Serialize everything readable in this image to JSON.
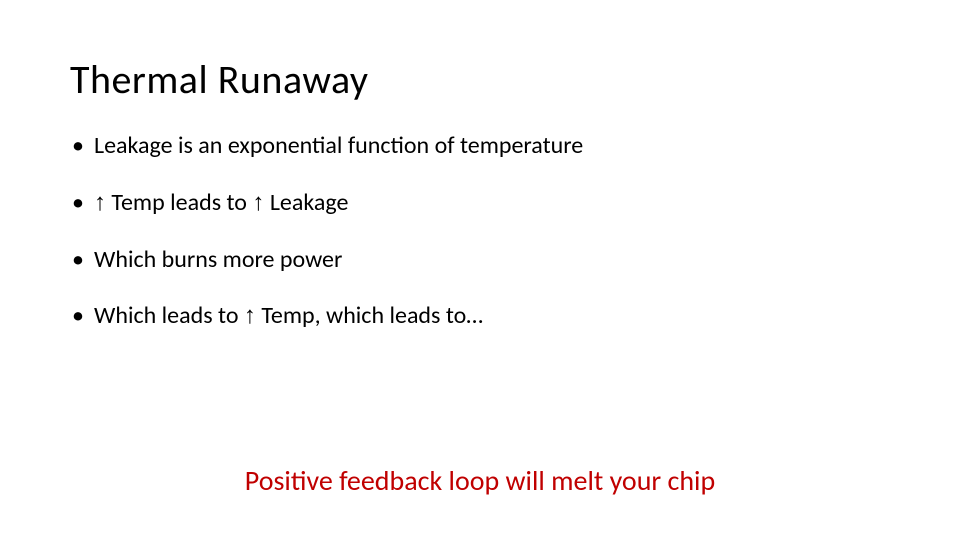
{
  "slide": {
    "title": "Thermal Runaway",
    "title_color": "#000000",
    "title_fontsize": 40,
    "bullets": [
      {
        "pre": "Leakage is an exponential function of temperature",
        "arrow1": "",
        "mid": "",
        "arrow2": "",
        "post": ""
      },
      {
        "pre": "",
        "arrow1": "↑",
        "mid": " Temp leads to ",
        "arrow2": "↑",
        "post": " Leakage"
      },
      {
        "pre": "Which burns more power",
        "arrow1": "",
        "mid": "",
        "arrow2": "",
        "post": ""
      },
      {
        "pre": "Which leads to ",
        "arrow1": "↑",
        "mid": " Temp, which leads to…",
        "arrow2": "",
        "post": ""
      }
    ],
    "bullet_fontsize": 24,
    "bullet_color": "#000000",
    "footer": "Positive feedback loop will melt your chip",
    "footer_color": "#c00000",
    "footer_fontsize": 28,
    "arrow_glyph": "↑",
    "background_color": "#ffffff"
  }
}
